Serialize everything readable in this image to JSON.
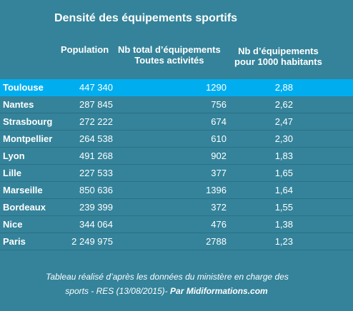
{
  "chart_data": {
    "type": "table",
    "title": "Densité des équipements sportifs",
    "columns": [
      "Population",
      "Nb total d’équipements Toutes activités",
      "Nb d’équipements pour 1000 habitants"
    ],
    "rows": [
      {
        "city": "Toulouse",
        "population": "447 340",
        "total": "1290",
        "ratio": "2,88"
      },
      {
        "city": "Nantes",
        "population": "287 845",
        "total": "756",
        "ratio": "2,62"
      },
      {
        "city": "Strasbourg",
        "population": "272 222",
        "total": "674",
        "ratio": "2,47"
      },
      {
        "city": "Montpellier",
        "population": "264 538",
        "total": "610",
        "ratio": "2,30"
      },
      {
        "city": "Lyon",
        "population": "491 268",
        "total": "902",
        "ratio": "1,83"
      },
      {
        "city": "Lille",
        "population": "227 533",
        "total": "377",
        "ratio": "1,65"
      },
      {
        "city": "Marseille",
        "population": "850 636",
        "total": "1396",
        "ratio": "1,64"
      },
      {
        "city": "Bordeaux",
        "population": "239 399",
        "total": "372",
        "ratio": "1,55"
      },
      {
        "city": "Nice",
        "population": "344 064",
        "total": "476",
        "ratio": "1,38"
      },
      {
        "city": "Paris",
        "population": "2 249 975",
        "total": "2788",
        "ratio": "1,23"
      }
    ],
    "highlighted_row": 0,
    "highlight_color": "#00aeef",
    "background_color": "#34839a"
  },
  "header": {
    "population": "Population",
    "total_line1": "Nb total d’équipements",
    "total_line2": "Toutes activités",
    "ratio_line1": "Nb d’équipements",
    "ratio_line2": "pour 1000 habitants"
  },
  "footer": {
    "line1": "Tableau réalisé d’après les données du ministère en charge des",
    "line2_prefix": "sports - RES (13/08/2015)- ",
    "brand": "Par Midiformations.com"
  }
}
